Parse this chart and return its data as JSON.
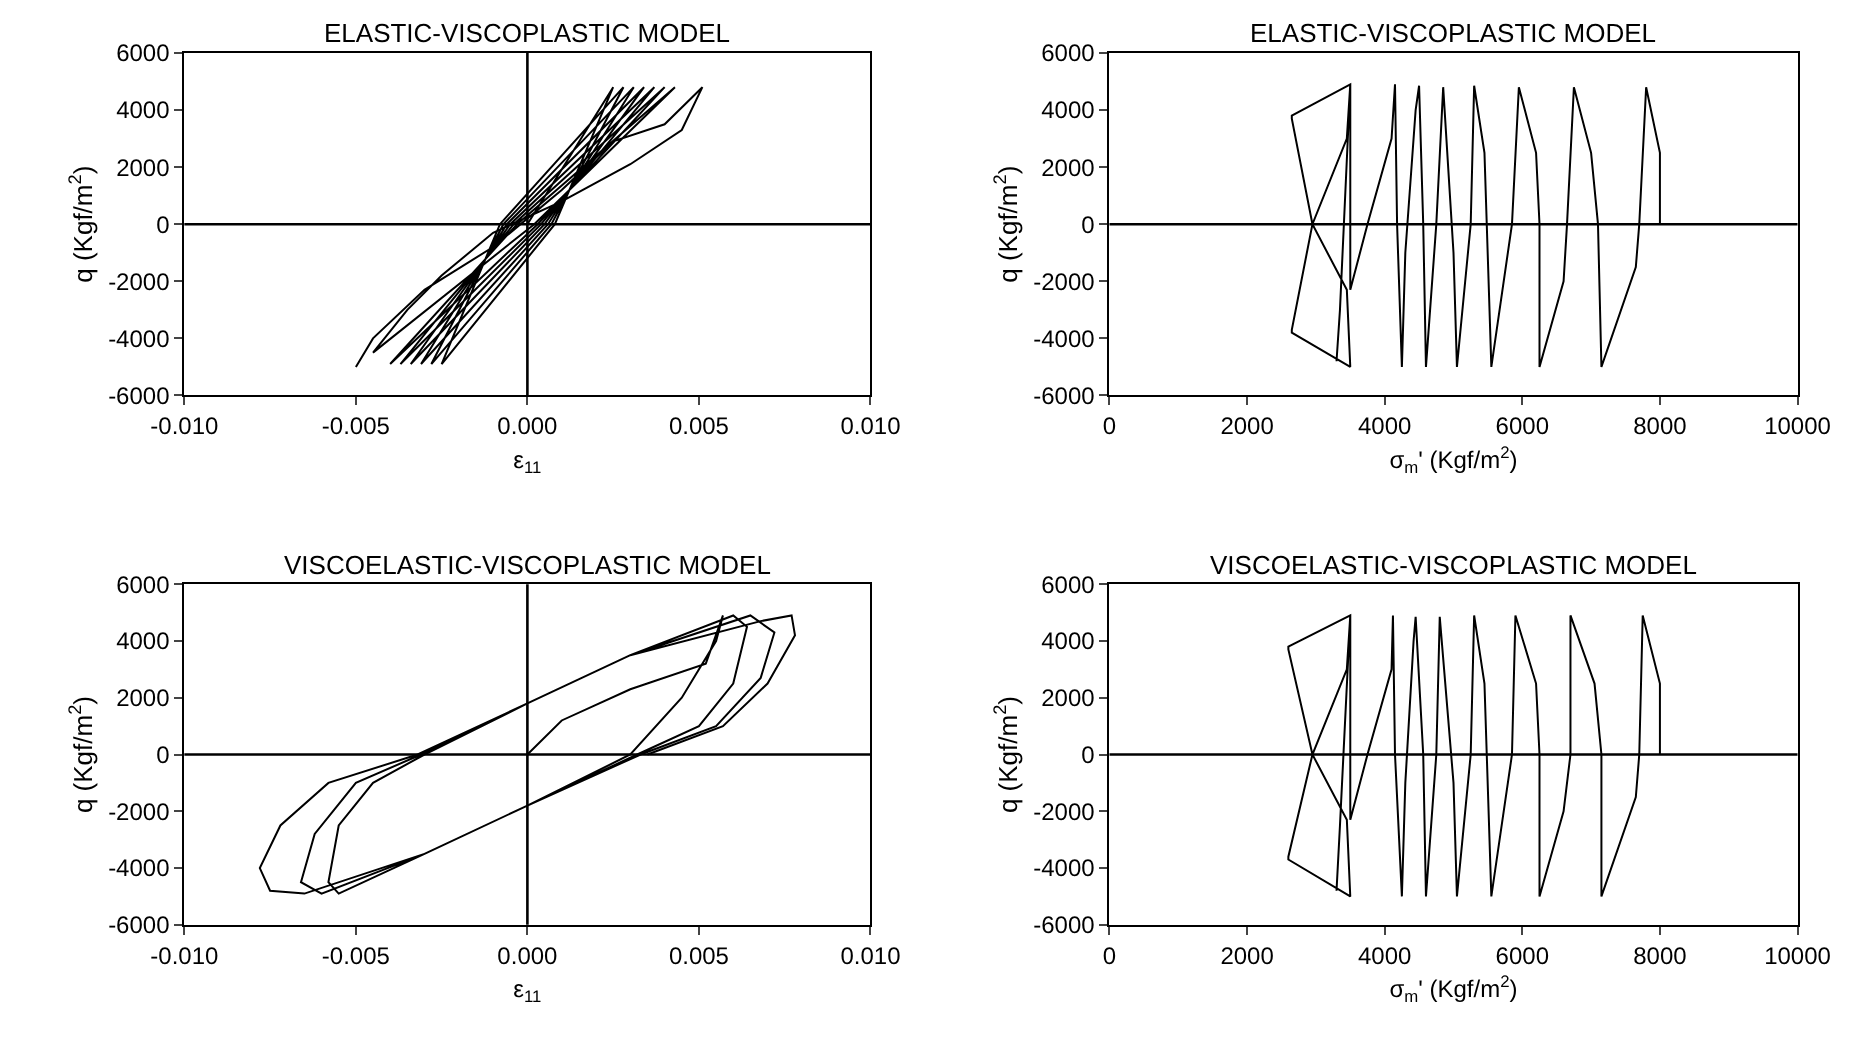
{
  "chart_data": [
    {
      "type": "line",
      "title": "ELASTIC-VISCOPLASTIC MODEL",
      "xlabel": "ε$_{11}$",
      "ylabel": "q (Kgf/m$^{2}$)",
      "xlim": [
        -0.01,
        0.01
      ],
      "ylim": [
        -6000,
        6000
      ],
      "xticks": [
        {
          "value": -0.01,
          "label": "-0.010"
        },
        {
          "value": -0.005,
          "label": "-0.005"
        },
        {
          "value": 0,
          "label": "0.000"
        },
        {
          "value": 0.005,
          "label": "0.005"
        },
        {
          "value": 0.01,
          "label": "0.010"
        }
      ],
      "yticks": [
        -6000,
        -4000,
        -2000,
        0,
        2000,
        4000,
        6000
      ],
      "grid": false,
      "marker": "none",
      "line_style": "solid",
      "ref_lines": [
        {
          "axis": "y",
          "value": 0
        },
        {
          "axis": "x",
          "value": 0
        }
      ],
      "series": [
        {
          "color": "#000000",
          "x": [
            0,
            0.0025,
            0.0008,
            -0.0025,
            -0.0008,
            0.0028,
            0.0007,
            -0.0028,
            -0.0007,
            0.0031,
            0.0006,
            -0.0031,
            -0.0006,
            0.0034,
            0.0005,
            -0.0034,
            -0.0005,
            0.0037,
            0.0004,
            -0.0037,
            -0.0004,
            0.004,
            0.0003,
            -0.004,
            -0.0003,
            0.0043,
            0.0002,
            -0.0045,
            -0.0035,
            -0.0025,
            -0.001,
            0.001,
            0.003,
            0.0045,
            0.0051,
            0.004,
            0.0025,
            0.001,
            -0.001,
            -0.003,
            -0.0045,
            -0.005
          ],
          "values": [
            0,
            4800,
            0,
            -4900,
            0,
            4800,
            0,
            -4900,
            0,
            4800,
            0,
            -4900,
            0,
            4800,
            0,
            -4900,
            0,
            4800,
            0,
            -4900,
            0,
            4800,
            0,
            -4900,
            0,
            4800,
            0,
            -4500,
            -3000,
            -1800,
            -300,
            800,
            2100,
            3300,
            4800,
            3500,
            2900,
            1200,
            -800,
            -2300,
            -4000,
            -5000
          ]
        }
      ]
    },
    {
      "type": "line",
      "title": "ELASTIC-VISCOPLASTIC MODEL",
      "xlabel": "σ$_{m}$' (Kgf/m$^{2}$)",
      "ylabel": "q (Kgf/m$^{2}$)",
      "xlim": [
        0,
        10000
      ],
      "ylim": [
        -6000,
        6000
      ],
      "xticks": [
        0,
        2000,
        4000,
        6000,
        8000,
        10000
      ],
      "yticks": [
        -6000,
        -4000,
        -2000,
        0,
        2000,
        4000,
        6000
      ],
      "grid": false,
      "marker": "none",
      "line_style": "solid",
      "ref_lines": [
        {
          "axis": "y",
          "value": 0
        }
      ],
      "series": [
        {
          "color": "#000000",
          "x": [
            3300,
            3350,
            3500,
            3450,
            2950,
            2650,
            2650,
            3500,
            3450,
            2950,
            2650,
            2650,
            3500,
            3500,
            3750,
            4100,
            4150,
            4180,
            4250,
            4300,
            4450,
            4500,
            4560,
            4600,
            4750,
            4850,
            5000,
            5050,
            5250,
            5300,
            5450,
            5550,
            5850,
            5950,
            6200,
            6250,
            6250,
            6600,
            6650,
            6750,
            7000,
            7100,
            7150,
            7650,
            7700,
            7800,
            8000,
            8000
          ],
          "values": [
            -4800,
            -3000,
            4900,
            3000,
            0,
            -3700,
            -3800,
            -5000,
            -2300,
            0,
            3700,
            3800,
            4900,
            -2300,
            0,
            3000,
            4900,
            0,
            -5000,
            -1000,
            4000,
            4850,
            0,
            -5000,
            0,
            4800,
            -1000,
            -5000,
            0,
            4850,
            2500,
            -5000,
            0,
            4800,
            2500,
            0,
            -5000,
            -2000,
            0,
            4800,
            2500,
            0,
            -5000,
            -1500,
            0,
            4800,
            2500,
            0
          ]
        }
      ]
    },
    {
      "type": "line",
      "title": "VISCOELASTIC-VISCOPLASTIC MODEL",
      "xlabel": "ε$_{11}$",
      "ylabel": "q (Kgf/m$^{2}$)",
      "xlim": [
        -0.01,
        0.01
      ],
      "ylim": [
        -6000,
        6000
      ],
      "xticks": [
        {
          "value": -0.01,
          "label": "-0.010"
        },
        {
          "value": -0.005,
          "label": "-0.005"
        },
        {
          "value": 0,
          "label": "0.000"
        },
        {
          "value": 0.005,
          "label": "0.005"
        },
        {
          "value": 0.01,
          "label": "0.010"
        }
      ],
      "yticks": [
        -6000,
        -4000,
        -2000,
        0,
        2000,
        4000,
        6000
      ],
      "grid": false,
      "marker": "none",
      "line_style": "solid",
      "ref_lines": [
        {
          "axis": "y",
          "value": 0
        },
        {
          "axis": "x",
          "value": 0
        }
      ],
      "series": [
        {
          "color": "#000000",
          "x": [
            0,
            0.001,
            0.003,
            0.0052,
            0.0057,
            0.0055,
            0.0045,
            0.003,
            0,
            -0.003,
            -0.0055,
            -0.0058,
            -0.0055,
            -0.0045,
            -0.003,
            0,
            0.003,
            0.006,
            0.0064,
            0.006,
            0.005,
            0.0032,
            0,
            -0.003,
            -0.006,
            -0.0066,
            -0.0062,
            -0.005,
            -0.0031,
            0,
            0.003,
            0.0065,
            0.0072,
            0.0068,
            0.0055,
            0.0033,
            0,
            -0.003,
            -0.0065,
            -0.0075,
            -0.0078,
            -0.0072,
            -0.0058,
            -0.0032,
            0,
            0.003,
            0.0068,
            0.0077,
            0.0078,
            0.007,
            0.0057,
            0.0035
          ],
          "values": [
            0,
            1200,
            2300,
            3200,
            4900,
            4000,
            2000,
            0,
            -1800,
            -3500,
            -4900,
            -4500,
            -2500,
            -1000,
            0,
            1800,
            3500,
            4900,
            4500,
            2500,
            1000,
            0,
            -1800,
            -3500,
            -4900,
            -4500,
            -2800,
            -1000,
            0,
            1800,
            3500,
            4900,
            4300,
            2700,
            1000,
            0,
            -1800,
            -3500,
            -4900,
            -4800,
            -4000,
            -2500,
            -1000,
            0,
            1800,
            3500,
            4700,
            4900,
            4200,
            2500,
            1000,
            0
          ]
        }
      ]
    },
    {
      "type": "line",
      "title": "VISCOELASTIC-VISCOPLASTIC MODEL",
      "xlabel": "σ$_{m}$' (Kgf/m$^{2}$)",
      "ylabel": "q (Kgf/m$^{2}$)",
      "xlim": [
        0,
        10000
      ],
      "ylim": [
        -6000,
        6000
      ],
      "xticks": [
        0,
        2000,
        4000,
        6000,
        8000,
        10000
      ],
      "yticks": [
        -6000,
        -4000,
        -2000,
        0,
        2000,
        4000,
        6000
      ],
      "grid": false,
      "marker": "none",
      "line_style": "solid",
      "ref_lines": [
        {
          "axis": "y",
          "value": 0
        }
      ],
      "series": [
        {
          "color": "#000000",
          "x": [
            3300,
            3350,
            3500,
            3450,
            2950,
            2600,
            2600,
            3500,
            3450,
            2950,
            2600,
            2600,
            3500,
            3500,
            3750,
            4100,
            4120,
            4150,
            4250,
            4300,
            4420,
            4450,
            4560,
            4600,
            4750,
            4800,
            5000,
            5050,
            5250,
            5300,
            5450,
            5550,
            5850,
            5900,
            6200,
            6250,
            6250,
            6600,
            6700,
            6700,
            7050,
            7150,
            7150,
            7650,
            7700,
            7750,
            8000,
            8000
          ],
          "values": [
            -4800,
            -2500,
            4900,
            3000,
            0,
            -3600,
            -3700,
            -5000,
            -2300,
            0,
            3700,
            3800,
            4900,
            -2300,
            0,
            3000,
            4900,
            0,
            -5000,
            -1000,
            4000,
            4850,
            0,
            -5000,
            0,
            4850,
            -1000,
            -5000,
            0,
            4900,
            2500,
            -5000,
            0,
            4900,
            2500,
            0,
            -5000,
            -2000,
            0,
            4900,
            2500,
            0,
            -5000,
            -1500,
            0,
            4900,
            2500,
            0
          ]
        }
      ]
    }
  ]
}
